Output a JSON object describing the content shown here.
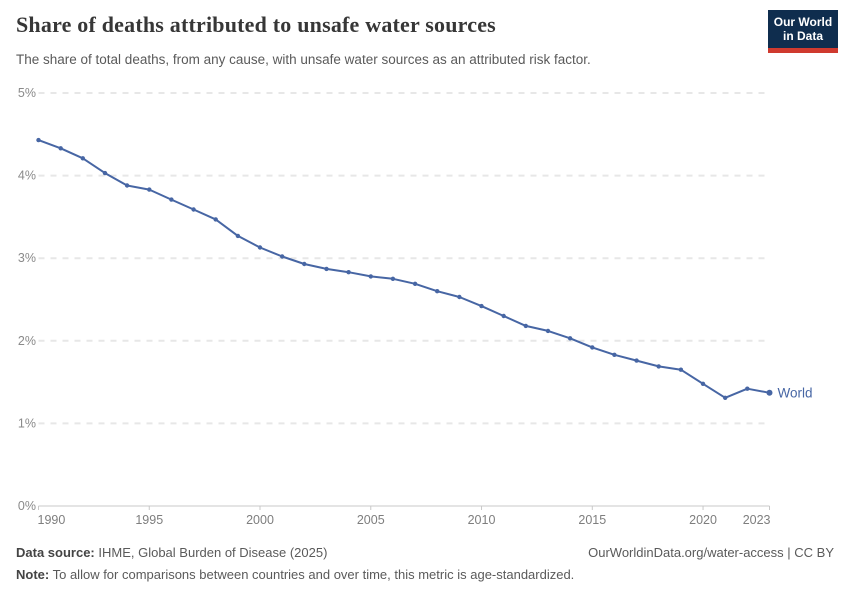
{
  "header": {
    "title": "Share of deaths attributed to unsafe water sources",
    "subtitle": "The share of total deaths, from any cause, with unsafe water sources as an attributed risk factor.",
    "logo": {
      "line1": "Our World",
      "line2": "in Data"
    }
  },
  "chart_data": {
    "type": "line",
    "title": "Share of deaths attributed to unsafe water sources",
    "xlabel": "",
    "ylabel": "",
    "ylim": [
      0,
      5
    ],
    "yticks": [
      0,
      1,
      2,
      3,
      4,
      5
    ],
    "ytick_labels": [
      "0%",
      "1%",
      "2%",
      "3%",
      "4%",
      "5%"
    ],
    "xlim": [
      1990,
      2023
    ],
    "xticks": [
      1990,
      1995,
      2000,
      2005,
      2010,
      2015,
      2020,
      2023
    ],
    "grid": "horizontal-dashed",
    "legend_position": "end-of-line-label",
    "line_color": "#4766a4",
    "grid_color": "#e7e7e7",
    "axis_color": "#c8c8c8",
    "tick_label_color": "#8a8a8a",
    "series": [
      {
        "name": "World",
        "x": [
          1990,
          1991,
          1992,
          1993,
          1994,
          1995,
          1996,
          1997,
          1998,
          1999,
          2000,
          2001,
          2002,
          2003,
          2004,
          2005,
          2006,
          2007,
          2008,
          2009,
          2010,
          2011,
          2012,
          2013,
          2014,
          2015,
          2016,
          2017,
          2018,
          2019,
          2020,
          2021,
          2022,
          2023
        ],
        "values": [
          4.43,
          4.33,
          4.21,
          4.03,
          3.88,
          3.83,
          3.71,
          3.59,
          3.47,
          3.27,
          3.13,
          3.02,
          2.93,
          2.87,
          2.83,
          2.78,
          2.75,
          2.69,
          2.6,
          2.53,
          2.42,
          2.3,
          2.18,
          2.12,
          2.03,
          1.92,
          1.83,
          1.76,
          1.69,
          1.65,
          1.48,
          1.31,
          1.42,
          1.37
        ]
      }
    ]
  },
  "footer": {
    "source_label": "Data source:",
    "source": "IHME, Global Burden of Disease (2025)",
    "right_link": "OurWorldinData.org/water-access | CC BY",
    "note_label": "Note:",
    "note": "To allow for comparisons between countries and over time, this metric is age-standardized."
  }
}
